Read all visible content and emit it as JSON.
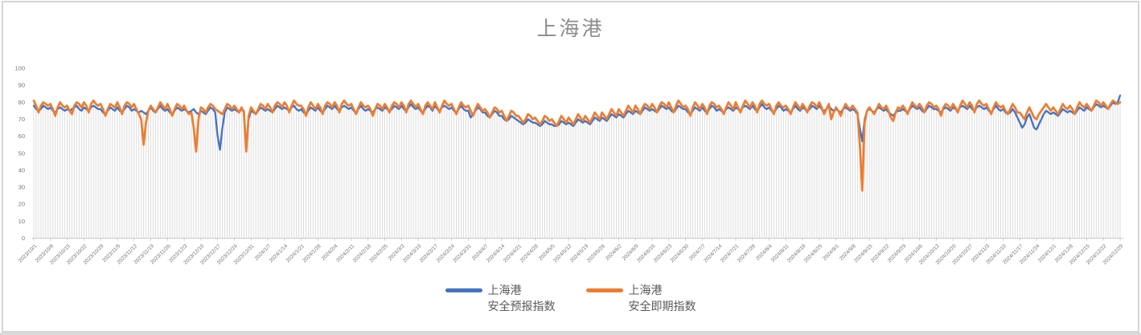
{
  "chart_data": {
    "type": "line",
    "title": "上海港",
    "xlabel": "",
    "ylabel": "",
    "ylim": [
      0,
      100
    ],
    "yticks": [
      0,
      10,
      20,
      30,
      40,
      50,
      60,
      70,
      80,
      90,
      100
    ],
    "grid": "none",
    "droplines": true,
    "legend_position": "bottom",
    "x_label_every": 7,
    "x_labels": [
      "2023/10/1",
      "2023/10/8",
      "2023/10/15",
      "2023/10/22",
      "2023/10/29",
      "2023/11/5",
      "2023/11/12",
      "2023/11/19",
      "2023/11/26",
      "2023/12/3",
      "2023/12/10",
      "2023/12/17",
      "2023/12/24",
      "2023/12/31",
      "2024/1/7",
      "2024/1/14",
      "2024/1/21",
      "2024/1/28",
      "2024/2/4",
      "2024/2/11",
      "2024/2/18",
      "2024/2/25",
      "2024/3/3",
      "2024/3/10",
      "2024/3/17",
      "2024/3/24",
      "2024/3/31",
      "2024/4/7",
      "2024/4/14",
      "2024/4/21",
      "2024/4/28",
      "2024/5/5",
      "2024/5/12",
      "2024/5/19",
      "2024/5/26",
      "2024/6/2",
      "2024/6/9",
      "2024/6/16",
      "2024/6/23",
      "2024/6/30",
      "2024/7/7",
      "2024/7/14",
      "2024/7/21",
      "2024/7/28",
      "2024/8/4",
      "2024/8/11",
      "2024/8/18",
      "2024/8/25",
      "2024/9/1",
      "2024/9/8",
      "2024/9/15",
      "2024/9/22",
      "2024/9/29",
      "2024/10/6",
      "2024/10/13",
      "2024/10/20",
      "2024/10/27",
      "2024/11/3",
      "2024/11/10",
      "2024/11/17",
      "2024/11/24",
      "2024/12/1",
      "2024/12/8",
      "2024/12/15",
      "2024/12/22",
      "2024/12/29"
    ],
    "series": [
      {
        "name": "上海港 安全预报指数",
        "name_lines": [
          "上海港",
          "安全预报指数"
        ],
        "color": "#4472C4",
        "values": [
          78,
          76,
          75,
          76,
          78,
          77,
          76,
          77,
          75,
          74,
          76,
          77,
          76,
          75,
          76,
          75,
          76,
          77,
          78,
          76,
          75,
          77,
          76,
          75,
          77,
          78,
          77,
          76,
          76,
          74,
          73,
          75,
          77,
          76,
          75,
          77,
          75,
          74,
          76,
          78,
          77,
          75,
          76,
          75,
          74,
          75,
          74,
          73,
          75,
          77,
          75,
          74,
          76,
          78,
          76,
          75,
          76,
          74,
          73,
          75,
          77,
          76,
          75,
          76,
          75,
          74,
          75,
          76,
          74,
          73,
          75,
          74,
          73,
          75,
          77,
          76,
          74,
          60,
          52,
          65,
          74,
          77,
          76,
          75,
          76,
          75,
          74,
          76,
          75,
          52,
          70,
          75,
          74,
          73,
          75,
          77,
          76,
          75,
          76,
          75,
          74,
          76,
          78,
          77,
          76,
          77,
          76,
          75,
          77,
          78,
          76,
          75,
          76,
          74,
          73,
          75,
          77,
          76,
          75,
          77,
          75,
          74,
          76,
          78,
          77,
          76,
          78,
          76,
          75,
          77,
          78,
          77,
          76,
          77,
          75,
          74,
          76,
          78,
          76,
          75,
          76,
          75,
          74,
          76,
          77,
          76,
          75,
          77,
          76,
          75,
          76,
          78,
          77,
          76,
          78,
          76,
          75,
          77,
          79,
          77,
          76,
          77,
          75,
          74,
          76,
          78,
          77,
          75,
          78,
          76,
          75,
          77,
          78,
          77,
          76,
          77,
          75,
          74,
          76,
          78,
          76,
          75,
          75,
          71,
          73,
          75,
          77,
          76,
          74,
          74,
          72,
          71,
          73,
          75,
          74,
          72,
          72,
          70,
          69,
          70,
          72,
          71,
          70,
          69,
          68,
          67,
          68,
          70,
          69,
          68,
          68,
          67,
          66,
          67,
          69,
          68,
          67,
          67,
          66,
          66,
          67,
          69,
          68,
          67,
          68,
          67,
          66,
          68,
          70,
          69,
          68,
          69,
          68,
          67,
          69,
          71,
          70,
          69,
          71,
          70,
          69,
          71,
          73,
          72,
          71,
          73,
          72,
          71,
          73,
          75,
          74,
          73,
          75,
          74,
          73,
          75,
          77,
          76,
          75,
          76,
          75,
          74,
          76,
          78,
          77,
          76,
          77,
          75,
          74,
          76,
          78,
          77,
          76,
          76,
          74,
          73,
          75,
          77,
          76,
          75,
          77,
          75,
          74,
          76,
          78,
          77,
          75,
          76,
          75,
          74,
          76,
          77,
          76,
          75,
          77,
          76,
          75,
          77,
          78,
          77,
          76,
          78,
          76,
          75,
          77,
          79,
          77,
          76,
          77,
          75,
          74,
          76,
          78,
          77,
          75,
          76,
          75,
          74,
          76,
          78,
          76,
          75,
          77,
          76,
          75,
          76,
          78,
          77,
          76,
          78,
          76,
          75,
          76,
          78,
          76,
          75,
          76,
          75,
          74,
          76,
          77,
          76,
          75,
          76,
          75,
          73,
          65,
          57,
          70,
          75,
          76,
          75,
          74,
          76,
          77,
          76,
          75,
          76,
          74,
          73,
          72,
          74,
          75,
          75,
          76,
          75,
          74,
          76,
          78,
          77,
          76,
          77,
          75,
          74,
          76,
          78,
          77,
          76,
          76,
          75,
          74,
          76,
          77,
          76,
          75,
          77,
          76,
          75,
          77,
          78,
          77,
          76,
          78,
          76,
          75,
          77,
          78,
          77,
          76,
          77,
          75,
          74,
          76,
          78,
          76,
          75,
          76,
          74,
          73,
          74,
          76,
          74,
          71,
          68,
          65,
          67,
          71,
          73,
          69,
          65,
          64,
          67,
          70,
          73,
          75,
          74,
          73,
          74,
          73,
          72,
          74,
          76,
          75,
          74,
          75,
          74,
          73,
          75,
          77,
          76,
          75,
          77,
          76,
          75,
          77,
          79,
          78,
          77,
          78,
          77,
          76,
          78,
          80,
          79,
          80,
          84
        ]
      },
      {
        "name": "上海港 安全即期指数",
        "name_lines": [
          "上海港",
          "安全即期指数"
        ],
        "color": "#ED7D31",
        "values": [
          81,
          78,
          74,
          78,
          80,
          79,
          78,
          79,
          76,
          72,
          77,
          80,
          78,
          77,
          78,
          75,
          73,
          78,
          80,
          79,
          77,
          80,
          78,
          74,
          79,
          81,
          79,
          78,
          79,
          76,
          72,
          76,
          79,
          78,
          77,
          80,
          77,
          73,
          78,
          80,
          79,
          77,
          79,
          76,
          73,
          70,
          55,
          68,
          75,
          78,
          76,
          74,
          77,
          80,
          78,
          76,
          79,
          76,
          72,
          76,
          79,
          78,
          76,
          78,
          75,
          73,
          74,
          65,
          51,
          70,
          77,
          76,
          74,
          77,
          79,
          78,
          76,
          75,
          74,
          73,
          76,
          79,
          78,
          76,
          78,
          76,
          74,
          77,
          74,
          51,
          72,
          77,
          75,
          73,
          76,
          79,
          78,
          76,
          79,
          77,
          74,
          78,
          80,
          79,
          77,
          80,
          78,
          74,
          78,
          81,
          79,
          78,
          78,
          76,
          72,
          77,
          80,
          78,
          76,
          79,
          77,
          73,
          78,
          80,
          79,
          77,
          80,
          78,
          74,
          79,
          81,
          79,
          78,
          79,
          76,
          73,
          77,
          80,
          78,
          77,
          78,
          76,
          72,
          76,
          79,
          78,
          76,
          79,
          77,
          74,
          78,
          80,
          79,
          77,
          80,
          78,
          74,
          79,
          81,
          79,
          77,
          79,
          76,
          73,
          78,
          80,
          78,
          76,
          80,
          77,
          74,
          78,
          81,
          79,
          78,
          79,
          76,
          73,
          77,
          80,
          78,
          77,
          78,
          75,
          72,
          76,
          79,
          77,
          75,
          76,
          74,
          71,
          74,
          77,
          76,
          74,
          75,
          72,
          69,
          72,
          75,
          74,
          72,
          72,
          70,
          68,
          70,
          73,
          72,
          70,
          71,
          69,
          67,
          69,
          72,
          71,
          69,
          70,
          68,
          66,
          69,
          72,
          70,
          68,
          71,
          69,
          67,
          70,
          73,
          71,
          69,
          72,
          70,
          68,
          71,
          74,
          72,
          70,
          74,
          72,
          70,
          73,
          76,
          74,
          72,
          76,
          74,
          72,
          75,
          78,
          76,
          74,
          78,
          76,
          73,
          77,
          79,
          78,
          76,
          79,
          77,
          74,
          78,
          80,
          79,
          77,
          80,
          77,
          74,
          78,
          81,
          79,
          77,
          78,
          76,
          72,
          77,
          80,
          78,
          76,
          79,
          77,
          73,
          78,
          80,
          79,
          77,
          78,
          76,
          73,
          77,
          80,
          78,
          76,
          80,
          77,
          74,
          78,
          81,
          79,
          77,
          80,
          78,
          74,
          79,
          81,
          79,
          78,
          79,
          76,
          73,
          78,
          80,
          78,
          77,
          78,
          76,
          73,
          77,
          80,
          78,
          76,
          79,
          77,
          74,
          78,
          80,
          79,
          77,
          80,
          77,
          73,
          76,
          79,
          70,
          74,
          77,
          75,
          72,
          76,
          79,
          77,
          76,
          78,
          76,
          74,
          55,
          28,
          68,
          75,
          77,
          75,
          73,
          76,
          79,
          77,
          76,
          78,
          75,
          71,
          69,
          74,
          77,
          76,
          78,
          76,
          73,
          77,
          80,
          78,
          77,
          79,
          77,
          74,
          78,
          80,
          79,
          77,
          78,
          76,
          72,
          77,
          79,
          78,
          76,
          79,
          77,
          74,
          78,
          81,
          79,
          77,
          80,
          78,
          74,
          79,
          81,
          79,
          78,
          79,
          76,
          73,
          77,
          80,
          78,
          77,
          78,
          75,
          73,
          76,
          79,
          77,
          74,
          74,
          72,
          70,
          74,
          77,
          74,
          71,
          70,
          73,
          75,
          77,
          79,
          77,
          75,
          77,
          75,
          73,
          76,
          79,
          77,
          76,
          78,
          76,
          73,
          77,
          80,
          78,
          77,
          79,
          77,
          75,
          78,
          81,
          80,
          78,
          80,
          78,
          76,
          79,
          81,
          80,
          79,
          80
        ]
      }
    ],
    "colors": {
      "series_forecast": "#4472C4",
      "series_spot": "#ED7D31",
      "dropline": "#dcdcdc",
      "axis_line": "#c9c9c9",
      "axis_text": "#767676",
      "title_text": "#8c8c8c",
      "legend_text": "#595959",
      "frame_border": "#d5d5d5"
    }
  }
}
